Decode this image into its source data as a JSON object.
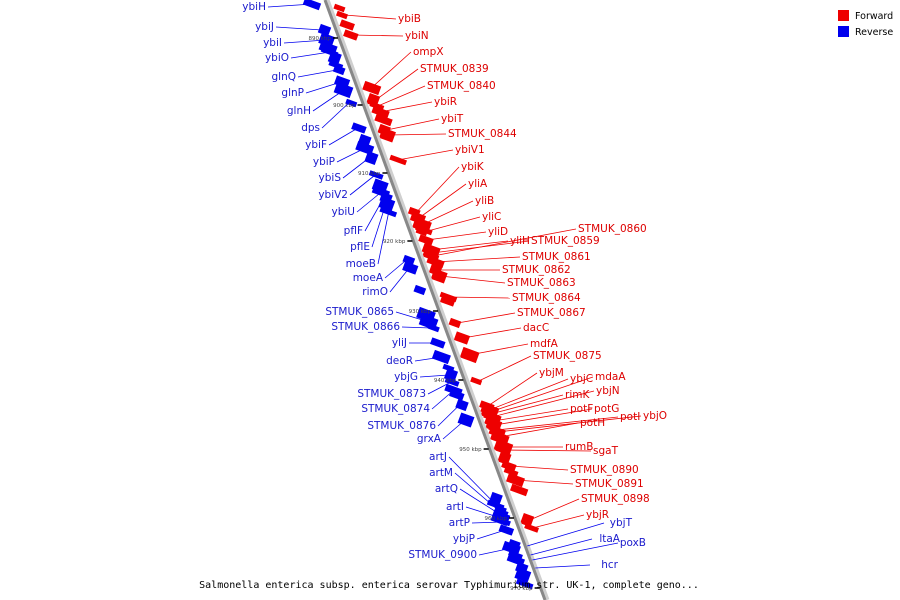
{
  "caption": "Salmonella enterica subsp. enterica serovar Typhimurium str. UK-1, complete geno...",
  "legend": [
    {
      "label": "Forward",
      "color": "#ee0000"
    },
    {
      "label": "Reverse",
      "color": "#0000ee"
    }
  ],
  "colors": {
    "forward": "#ee0000",
    "reverse": "#0000ee",
    "backbone": "#999999"
  },
  "ticks": [
    "890 kbp",
    "900 kbp",
    "910 kbp",
    "920 kbp",
    "930 kbp",
    "940 kbp",
    "950 kbp",
    "960 kbp",
    "970 kbp"
  ],
  "forward_genes": [
    "ybiB",
    "ybiN",
    "ompX",
    "STMUK_0839",
    "STMUK_0840",
    "ybiR",
    "ybiT",
    "STMUK_0844",
    "ybiV1",
    "ybiK",
    "yliA",
    "yliB",
    "yliC",
    "yliD",
    "yliH",
    "STMUK_0859",
    "STMUK_0860",
    "STMUK_0861",
    "STMUK_0862",
    "STMUK_0863",
    "STMUK_0864",
    "STMUK_0867",
    "dacC",
    "mdfA",
    "STMUK_0875",
    "ybjM",
    "ybjC",
    "mdaA",
    "rimK",
    "ybjN",
    "potF",
    "potG",
    "potI",
    "ybjO",
    "potH",
    "rumB",
    "sgaT",
    "STMUK_0890",
    "STMUK_0891",
    "STMUK_0898",
    "ybjR"
  ],
  "reverse_genes": [
    "ybiH",
    "ybiJ",
    "ybiI",
    "ybiO",
    "glnQ",
    "glnP",
    "glnH",
    "dps",
    "ybiF",
    "ybiP",
    "ybiS",
    "ybiV2",
    "ybiU",
    "pflF",
    "pflE",
    "moeB",
    "moeA",
    "rimO",
    "STMUK_0865",
    "STMUK_0866",
    "yliJ",
    "deoR",
    "ybjG",
    "STMUK_0873",
    "STMUK_0874",
    "STMUK_0876",
    "grxA",
    "artJ",
    "artM",
    "artQ",
    "artI",
    "artP",
    "ybjP",
    "STMUK_0900",
    "ybjT",
    "ltaA",
    "poxB",
    "hcr"
  ]
}
